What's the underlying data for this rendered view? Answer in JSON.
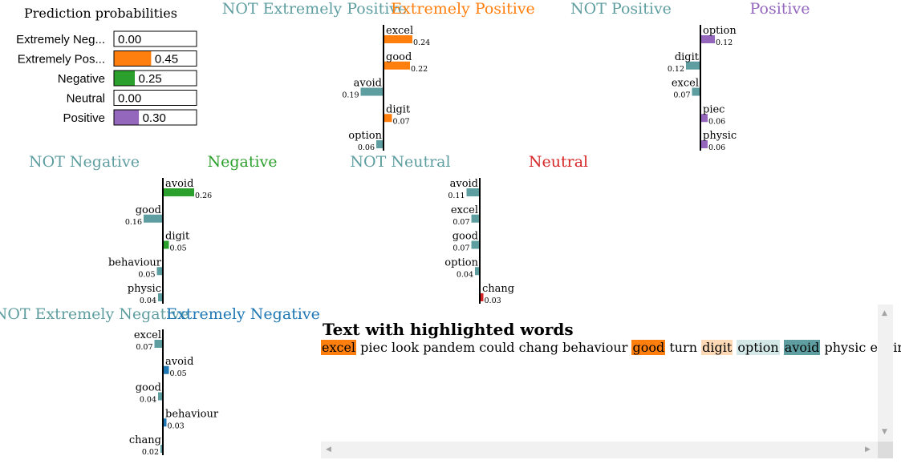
{
  "prediction_probabilities": {
    "title": "Prediction probabilities",
    "classes": [
      {
        "name": "Extremely Neg...",
        "value": 0.0,
        "value_label": "0.00",
        "color": "#1f77b4"
      },
      {
        "name": "Extremely Pos...",
        "value": 0.45,
        "value_label": "0.45",
        "color": "#ff7f0e"
      },
      {
        "name": "Negative",
        "value": 0.25,
        "value_label": "0.25",
        "color": "#2ca02c"
      },
      {
        "name": "Neutral",
        "value": 0.0,
        "value_label": "0.00",
        "color": "#d62728"
      },
      {
        "name": "Positive",
        "value": 0.3,
        "value_label": "0.30",
        "color": "#9467bd"
      }
    ]
  },
  "chart_data": [
    {
      "type": "bar",
      "not_label": "NOT Extremely Positive",
      "class_label": "Extremely Positive",
      "class_color": "#ff7f0e",
      "not_color": "#5f9ea0",
      "features": [
        {
          "word": "excel",
          "value": 0.24,
          "label": "0.24",
          "side": "class"
        },
        {
          "word": "good",
          "value": 0.22,
          "label": "0.22",
          "side": "class"
        },
        {
          "word": "avoid",
          "value": 0.19,
          "label": "0.19",
          "side": "not"
        },
        {
          "word": "digit",
          "value": 0.07,
          "label": "0.07",
          "side": "class"
        },
        {
          "word": "option",
          "value": 0.06,
          "label": "0.06",
          "side": "not"
        }
      ]
    },
    {
      "type": "bar",
      "not_label": "NOT Positive",
      "class_label": "Positive",
      "class_color": "#9467bd",
      "not_color": "#5f9ea0",
      "features": [
        {
          "word": "option",
          "value": 0.12,
          "label": "0.12",
          "side": "class"
        },
        {
          "word": "digit",
          "value": 0.12,
          "label": "0.12",
          "side": "not"
        },
        {
          "word": "excel",
          "value": 0.07,
          "label": "0.07",
          "side": "not"
        },
        {
          "word": "piec",
          "value": 0.06,
          "label": "0.06",
          "side": "class"
        },
        {
          "word": "physic",
          "value": 0.06,
          "label": "0.06",
          "side": "class"
        }
      ]
    },
    {
      "type": "bar",
      "not_label": "NOT Negative",
      "class_label": "Negative",
      "class_color": "#2ca02c",
      "not_color": "#5f9ea0",
      "features": [
        {
          "word": "avoid",
          "value": 0.26,
          "label": "0.26",
          "side": "class"
        },
        {
          "word": "good",
          "value": 0.16,
          "label": "0.16",
          "side": "not"
        },
        {
          "word": "digit",
          "value": 0.05,
          "label": "0.05",
          "side": "class"
        },
        {
          "word": "behaviour",
          "value": 0.05,
          "label": "0.05",
          "side": "not"
        },
        {
          "word": "physic",
          "value": 0.04,
          "label": "0.04",
          "side": "not"
        }
      ]
    },
    {
      "type": "bar",
      "not_label": "NOT Neutral",
      "class_label": "Neutral",
      "class_color": "#d62728",
      "not_color": "#5f9ea0",
      "features": [
        {
          "word": "avoid",
          "value": 0.11,
          "label": "0.11",
          "side": "not"
        },
        {
          "word": "excel",
          "value": 0.07,
          "label": "0.07",
          "side": "not"
        },
        {
          "word": "good",
          "value": 0.07,
          "label": "0.07",
          "side": "not"
        },
        {
          "word": "option",
          "value": 0.04,
          "label": "0.04",
          "side": "not"
        },
        {
          "word": "chang",
          "value": 0.03,
          "label": "0.03",
          "side": "class"
        }
      ]
    },
    {
      "type": "bar",
      "not_label": "NOT Extremely Negative",
      "class_label": "Extremely Negative",
      "class_color": "#1f77b4",
      "not_color": "#5f9ea0",
      "features": [
        {
          "word": "excel",
          "value": 0.07,
          "label": "0.07",
          "side": "not"
        },
        {
          "word": "avoid",
          "value": 0.05,
          "label": "0.05",
          "side": "class"
        },
        {
          "word": "good",
          "value": 0.04,
          "label": "0.04",
          "side": "not"
        },
        {
          "word": "behaviour",
          "value": 0.03,
          "label": "0.03",
          "side": "class"
        },
        {
          "word": "chang",
          "value": 0.02,
          "label": "0.02",
          "side": "not"
        }
      ]
    }
  ],
  "highlighted_text": {
    "title": "Text with highlighted words",
    "words": [
      {
        "text": "excel",
        "highlight": "#ff7f0e"
      },
      {
        "text": "piec",
        "highlight": ""
      },
      {
        "text": "look",
        "highlight": ""
      },
      {
        "text": "pandem",
        "highlight": ""
      },
      {
        "text": "could",
        "highlight": ""
      },
      {
        "text": "chang",
        "highlight": ""
      },
      {
        "text": "behaviour",
        "highlight": ""
      },
      {
        "text": "good",
        "highlight": "#ff7f0e"
      },
      {
        "text": "turn",
        "highlight": ""
      },
      {
        "text": "digit",
        "highlight": "#fdd9b5"
      },
      {
        "text": "option",
        "highlight": "#d5e8e8"
      },
      {
        "text": "avoid",
        "highlight": "#5f9ea0"
      },
      {
        "text": "physic",
        "highlight": ""
      },
      {
        "text": "environ",
        "highlight": ""
      }
    ]
  },
  "scrollbar": {
    "up_arrow": "▲",
    "down_arrow": "▼",
    "left_arrow": "◀",
    "right_arrow": "▶"
  }
}
